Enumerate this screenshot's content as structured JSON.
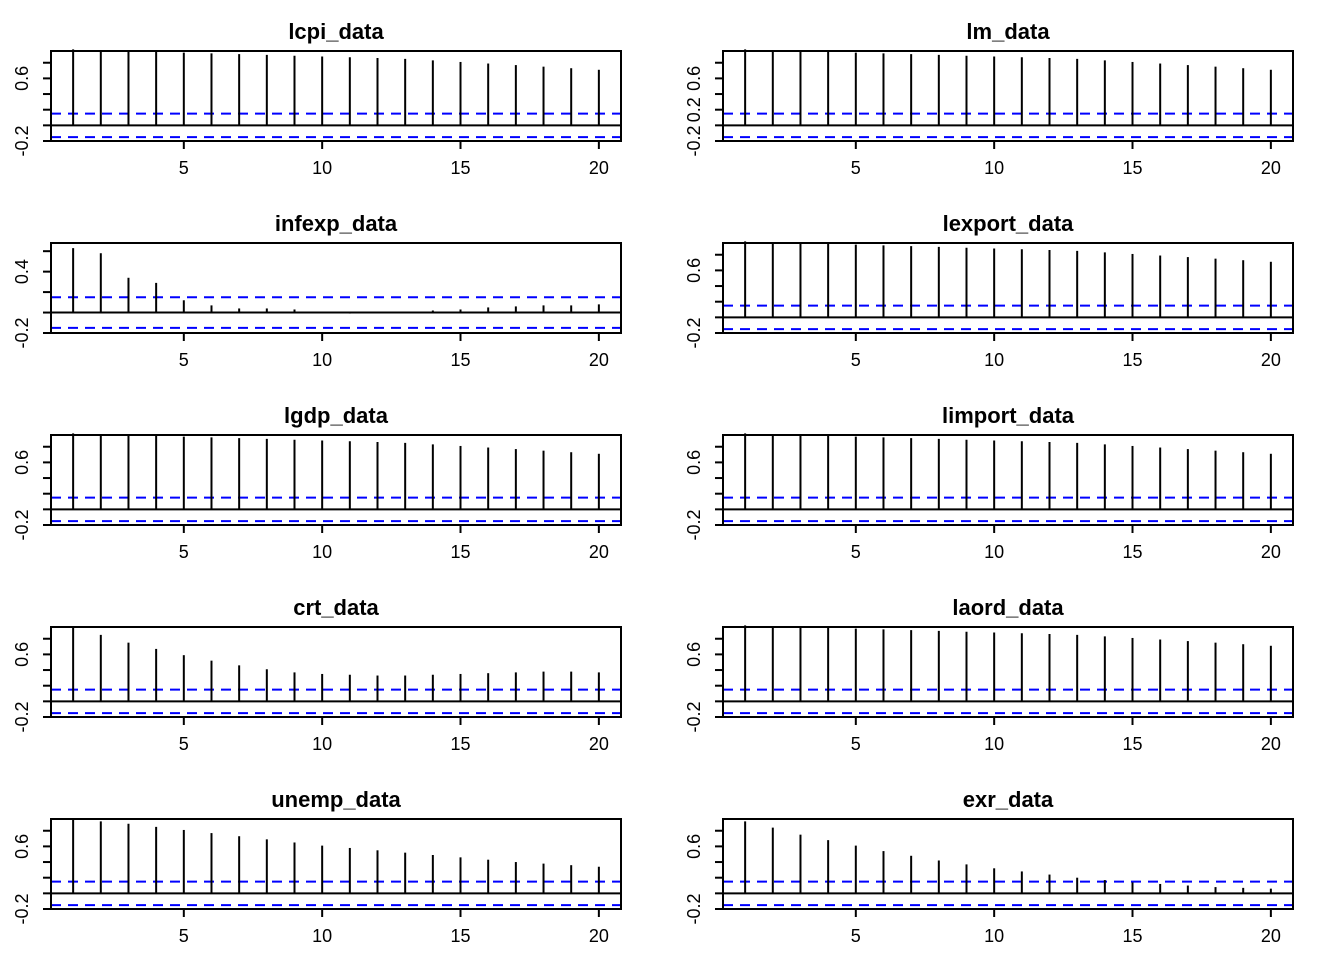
{
  "figure": {
    "colors": {
      "acf_bar": "#000000",
      "zero_line": "#000000",
      "confidence_band": "#0000ff",
      "background": "#ffffff"
    }
  },
  "chart_data": [
    {
      "type": "bar",
      "title": "lcpi_data",
      "xlabel": "",
      "ylabel": "",
      "x": [
        1,
        2,
        3,
        4,
        5,
        6,
        7,
        8,
        9,
        10,
        11,
        12,
        13,
        14,
        15,
        16,
        17,
        18,
        19,
        20
      ],
      "values": [
        0.97,
        0.96,
        0.95,
        0.94,
        0.93,
        0.92,
        0.91,
        0.9,
        0.89,
        0.88,
        0.87,
        0.86,
        0.85,
        0.83,
        0.81,
        0.79,
        0.77,
        0.75,
        0.73,
        0.71
      ],
      "xlim": [
        0.2,
        20.8
      ],
      "ylim": [
        -0.2,
        0.95
      ],
      "xticks": [
        5,
        10,
        15,
        20
      ],
      "xtick_labels": [
        "5",
        "10",
        "15",
        "20"
      ],
      "yticks": [
        -0.2,
        0.0,
        0.2,
        0.4,
        0.6,
        0.8
      ],
      "ytick_labels": [
        "-0.2",
        "",
        "",
        "",
        "0.6",
        ""
      ],
      "confidence_bounds": [
        0.15,
        -0.15
      ],
      "grid": false,
      "legend": "none"
    },
    {
      "type": "bar",
      "title": "lm_data",
      "xlabel": "",
      "ylabel": "",
      "x": [
        1,
        2,
        3,
        4,
        5,
        6,
        7,
        8,
        9,
        10,
        11,
        12,
        13,
        14,
        15,
        16,
        17,
        18,
        19,
        20
      ],
      "values": [
        0.97,
        0.96,
        0.95,
        0.94,
        0.93,
        0.92,
        0.91,
        0.9,
        0.89,
        0.88,
        0.87,
        0.86,
        0.85,
        0.83,
        0.81,
        0.79,
        0.77,
        0.75,
        0.73,
        0.71
      ],
      "xlim": [
        0.2,
        20.8
      ],
      "ylim": [
        -0.2,
        0.95
      ],
      "xticks": [
        5,
        10,
        15,
        20
      ],
      "xtick_labels": [
        "5",
        "10",
        "15",
        "20"
      ],
      "yticks": [
        -0.2,
        0.0,
        0.2,
        0.4,
        0.6,
        0.8
      ],
      "ytick_labels": [
        "-0.2",
        "",
        "0.2",
        "",
        "0.6",
        ""
      ],
      "confidence_bounds": [
        0.15,
        -0.15
      ],
      "grid": false,
      "legend": "none"
    },
    {
      "type": "bar",
      "title": "infexp_data",
      "xlabel": "",
      "ylabel": "",
      "x": [
        1,
        2,
        3,
        4,
        5,
        6,
        7,
        8,
        9,
        10,
        11,
        12,
        13,
        14,
        15,
        16,
        17,
        18,
        19,
        20
      ],
      "values": [
        0.63,
        0.58,
        0.34,
        0.29,
        0.12,
        0.07,
        0.04,
        0.04,
        0.03,
        0.01,
        -0.01,
        0.01,
        0.0,
        0.02,
        0.03,
        0.05,
        0.06,
        0.07,
        0.07,
        0.08
      ],
      "xlim": [
        0.2,
        20.8
      ],
      "ylim": [
        -0.2,
        0.68
      ],
      "xticks": [
        5,
        10,
        15,
        20
      ],
      "xtick_labels": [
        "5",
        "10",
        "15",
        "20"
      ],
      "yticks": [
        -0.2,
        0.0,
        0.2,
        0.4,
        0.6
      ],
      "ytick_labels": [
        "-0.2",
        "",
        "",
        "0.4",
        ""
      ],
      "confidence_bounds": [
        0.15,
        -0.15
      ],
      "grid": false,
      "legend": "none"
    },
    {
      "type": "bar",
      "title": "lexport_data",
      "xlabel": "",
      "ylabel": "",
      "x": [
        1,
        2,
        3,
        4,
        5,
        6,
        7,
        8,
        9,
        10,
        11,
        12,
        13,
        14,
        15,
        16,
        17,
        18,
        19,
        20
      ],
      "values": [
        0.97,
        0.96,
        0.95,
        0.94,
        0.93,
        0.92,
        0.91,
        0.9,
        0.89,
        0.88,
        0.87,
        0.86,
        0.85,
        0.83,
        0.81,
        0.79,
        0.77,
        0.75,
        0.73,
        0.71
      ],
      "xlim": [
        0.2,
        20.8
      ],
      "ylim": [
        -0.2,
        0.95
      ],
      "xticks": [
        5,
        10,
        15,
        20
      ],
      "xtick_labels": [
        "5",
        "10",
        "15",
        "20"
      ],
      "yticks": [
        -0.2,
        0.0,
        0.2,
        0.4,
        0.6,
        0.8
      ],
      "ytick_labels": [
        "-0.2",
        "",
        "",
        "",
        "0.6",
        ""
      ],
      "confidence_bounds": [
        0.15,
        -0.15
      ],
      "grid": false,
      "legend": "none"
    },
    {
      "type": "bar",
      "title": "lgdp_data",
      "xlabel": "",
      "ylabel": "",
      "x": [
        1,
        2,
        3,
        4,
        5,
        6,
        7,
        8,
        9,
        10,
        11,
        12,
        13,
        14,
        15,
        16,
        17,
        18,
        19,
        20
      ],
      "values": [
        0.97,
        0.96,
        0.95,
        0.94,
        0.93,
        0.92,
        0.91,
        0.9,
        0.89,
        0.88,
        0.87,
        0.86,
        0.85,
        0.83,
        0.81,
        0.79,
        0.77,
        0.75,
        0.73,
        0.71
      ],
      "xlim": [
        0.2,
        20.8
      ],
      "ylim": [
        -0.2,
        0.95
      ],
      "xticks": [
        5,
        10,
        15,
        20
      ],
      "xtick_labels": [
        "5",
        "10",
        "15",
        "20"
      ],
      "yticks": [
        -0.2,
        0.0,
        0.2,
        0.4,
        0.6,
        0.8
      ],
      "ytick_labels": [
        "-0.2",
        "",
        "",
        "",
        "0.6",
        ""
      ],
      "confidence_bounds": [
        0.15,
        -0.15
      ],
      "grid": false,
      "legend": "none"
    },
    {
      "type": "bar",
      "title": "limport_data",
      "xlabel": "",
      "ylabel": "",
      "x": [
        1,
        2,
        3,
        4,
        5,
        6,
        7,
        8,
        9,
        10,
        11,
        12,
        13,
        14,
        15,
        16,
        17,
        18,
        19,
        20
      ],
      "values": [
        0.97,
        0.96,
        0.95,
        0.94,
        0.93,
        0.92,
        0.91,
        0.9,
        0.89,
        0.88,
        0.87,
        0.86,
        0.85,
        0.83,
        0.81,
        0.79,
        0.77,
        0.75,
        0.73,
        0.71
      ],
      "xlim": [
        0.2,
        20.8
      ],
      "ylim": [
        -0.2,
        0.95
      ],
      "xticks": [
        5,
        10,
        15,
        20
      ],
      "xtick_labels": [
        "5",
        "10",
        "15",
        "20"
      ],
      "yticks": [
        -0.2,
        0.0,
        0.2,
        0.4,
        0.6,
        0.8
      ],
      "ytick_labels": [
        "-0.2",
        "",
        "",
        "",
        "0.6",
        ""
      ],
      "confidence_bounds": [
        0.15,
        -0.15
      ],
      "grid": false,
      "legend": "none"
    },
    {
      "type": "bar",
      "title": "crt_data",
      "xlabel": "",
      "ylabel": "",
      "x": [
        1,
        2,
        3,
        4,
        5,
        6,
        7,
        8,
        9,
        10,
        11,
        12,
        13,
        14,
        15,
        16,
        17,
        18,
        19,
        20
      ],
      "values": [
        0.95,
        0.85,
        0.75,
        0.67,
        0.59,
        0.52,
        0.46,
        0.41,
        0.37,
        0.35,
        0.34,
        0.33,
        0.33,
        0.34,
        0.35,
        0.36,
        0.37,
        0.38,
        0.38,
        0.37
      ],
      "xlim": [
        0.2,
        20.8
      ],
      "ylim": [
        -0.2,
        0.95
      ],
      "xticks": [
        5,
        10,
        15,
        20
      ],
      "xtick_labels": [
        "5",
        "10",
        "15",
        "20"
      ],
      "yticks": [
        -0.2,
        0.0,
        0.2,
        0.4,
        0.6,
        0.8
      ],
      "ytick_labels": [
        "-0.2",
        "",
        "",
        "",
        "0.6",
        ""
      ],
      "confidence_bounds": [
        0.15,
        -0.15
      ],
      "grid": false,
      "legend": "none"
    },
    {
      "type": "bar",
      "title": "laord_data",
      "xlabel": "",
      "ylabel": "",
      "x": [
        1,
        2,
        3,
        4,
        5,
        6,
        7,
        8,
        9,
        10,
        11,
        12,
        13,
        14,
        15,
        16,
        17,
        18,
        19,
        20
      ],
      "values": [
        0.97,
        0.96,
        0.95,
        0.94,
        0.93,
        0.92,
        0.91,
        0.9,
        0.89,
        0.88,
        0.87,
        0.86,
        0.85,
        0.83,
        0.81,
        0.79,
        0.77,
        0.75,
        0.73,
        0.71
      ],
      "xlim": [
        0.2,
        20.8
      ],
      "ylim": [
        -0.2,
        0.95
      ],
      "xticks": [
        5,
        10,
        15,
        20
      ],
      "xtick_labels": [
        "5",
        "10",
        "15",
        "20"
      ],
      "yticks": [
        -0.2,
        0.0,
        0.2,
        0.4,
        0.6,
        0.8
      ],
      "ytick_labels": [
        "-0.2",
        "",
        "",
        "",
        "0.6",
        ""
      ],
      "confidence_bounds": [
        0.15,
        -0.15
      ],
      "grid": false,
      "legend": "none"
    },
    {
      "type": "bar",
      "title": "unemp_data",
      "xlabel": "",
      "ylabel": "",
      "x": [
        1,
        2,
        3,
        4,
        5,
        6,
        7,
        8,
        9,
        10,
        11,
        12,
        13,
        14,
        15,
        16,
        17,
        18,
        19,
        20
      ],
      "values": [
        0.95,
        0.92,
        0.89,
        0.85,
        0.81,
        0.77,
        0.73,
        0.69,
        0.65,
        0.61,
        0.58,
        0.55,
        0.52,
        0.49,
        0.46,
        0.43,
        0.4,
        0.38,
        0.36,
        0.34
      ],
      "xlim": [
        0.2,
        20.8
      ],
      "ylim": [
        -0.2,
        0.95
      ],
      "xticks": [
        5,
        10,
        15,
        20
      ],
      "xtick_labels": [
        "5",
        "10",
        "15",
        "20"
      ],
      "yticks": [
        -0.2,
        0.0,
        0.2,
        0.4,
        0.6,
        0.8
      ],
      "ytick_labels": [
        "-0.2",
        "",
        "",
        "",
        "0.6",
        ""
      ],
      "confidence_bounds": [
        0.15,
        -0.15
      ],
      "grid": false,
      "legend": "none"
    },
    {
      "type": "bar",
      "title": "exr_data",
      "xlabel": "",
      "ylabel": "",
      "x": [
        1,
        2,
        3,
        4,
        5,
        6,
        7,
        8,
        9,
        10,
        11,
        12,
        13,
        14,
        15,
        16,
        17,
        18,
        19,
        20
      ],
      "values": [
        0.92,
        0.84,
        0.75,
        0.68,
        0.61,
        0.54,
        0.48,
        0.42,
        0.37,
        0.32,
        0.28,
        0.24,
        0.2,
        0.17,
        0.14,
        0.12,
        0.1,
        0.08,
        0.07,
        0.06
      ],
      "xlim": [
        0.2,
        20.8
      ],
      "ylim": [
        -0.2,
        0.95
      ],
      "xticks": [
        5,
        10,
        15,
        20
      ],
      "xtick_labels": [
        "5",
        "10",
        "15",
        "20"
      ],
      "yticks": [
        -0.2,
        0.0,
        0.2,
        0.4,
        0.6,
        0.8
      ],
      "ytick_labels": [
        "-0.2",
        "",
        "",
        "",
        "0.6",
        ""
      ],
      "confidence_bounds": [
        0.15,
        -0.15
      ],
      "grid": false,
      "legend": "none"
    }
  ]
}
